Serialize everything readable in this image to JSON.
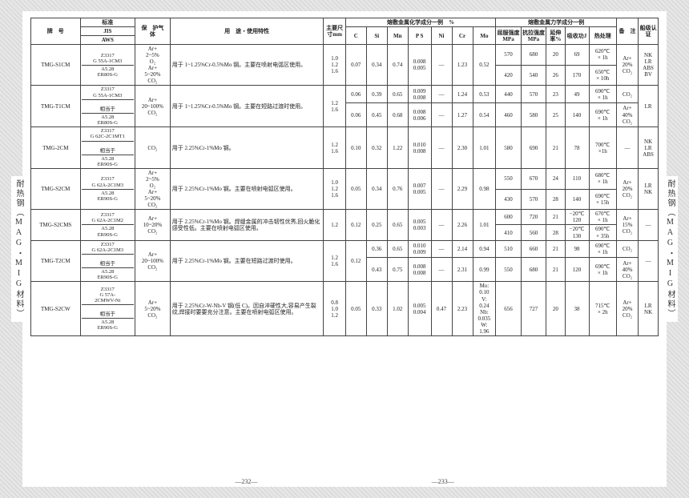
{
  "side_label": "耐热钢（MAG・MIG材料）",
  "page_left": "—232—",
  "page_right": "—233—",
  "head": {
    "brand": "牌　号",
    "std": "标准",
    "std_jis": "JIS",
    "std_aws": "AWS",
    "gas": "保　护气　体",
    "use": "用　途・使用特性",
    "size": "主要尺寸mm",
    "chem": "熔敷金属化学成分一例　%",
    "mech": "熔敷金属力学成分一例",
    "note": "备　注",
    "cert": "船级认证",
    "C": "C",
    "Si": "Si",
    "Mn": "Mn",
    "PS": "P\nS",
    "Ni": "Ni",
    "Cr": "Cr",
    "Mo": "Mo",
    "ys": "屈服强度MPa",
    "ts": "抗拉强度MPa",
    "el": "延伸率%",
    "cvn": "吸收功J",
    "ht": "热处理"
  },
  "rows": [
    {
      "brand": "TMG-S1CM",
      "std1": {
        "jis": "Z3317\nG 55A-1CM3",
        "aws": "A5.28\nER80S-G"
      },
      "std2": null,
      "gas": "Ar+\n2~5%\nO₂\nAr+\n5~20%\nCO₂",
      "use": "用于 1~1.25%Cr-0.5%Mo 钢。主要在喷射电弧区使用。",
      "size": "1.0\n1.2\n1.6",
      "chem": {
        "C": "0.07",
        "Si": "0.34",
        "Mn": "0.74",
        "PS": "0.008\n0.005",
        "Ni": "—",
        "Cr": "1.23",
        "Mo": "0.52"
      },
      "mech": [
        {
          "ys": "570",
          "ts": "680",
          "el": "20",
          "cvn": "69",
          "ht": "620℃\n× 1h"
        },
        {
          "ys": "420",
          "ts": "540",
          "el": "26",
          "cvn": "170",
          "ht": "650℃\n× 10h"
        }
      ],
      "note": "Ar+\n20%\nCO₂",
      "cert": "NK\nLR\nABS\nBV"
    },
    {
      "brand": "TMG-T1CM",
      "std1": {
        "jis": "Z3317\nG 55A-1CM3",
        "aws": ""
      },
      "std2": {
        "jis": "相当于",
        "aws": "A5.28\nER80S-G"
      },
      "gas": "Ar+\n20~100%\nCO₂",
      "use": "用于 1~1.25%Cr-0.5%Mo 钢。主要在短路过渡时使用。",
      "size": "1.2\n1.6",
      "chem_rows": [
        {
          "C": "0.06",
          "Si": "0.39",
          "Mn": "0.65",
          "PS": "0.009\n0.008",
          "Ni": "—",
          "Cr": "1.24",
          "Mo": "0.53"
        },
        {
          "C": "0.06",
          "Si": "0.45",
          "Mn": "0.68",
          "PS": "0.008\n0.006",
          "Ni": "—",
          "Cr": "1.27",
          "Mo": "0.54"
        }
      ],
      "mech": [
        {
          "ys": "440",
          "ts": "570",
          "el": "23",
          "cvn": "49",
          "ht": "690℃\n× 1h",
          "note": "CO₂"
        },
        {
          "ys": "460",
          "ts": "580",
          "el": "25",
          "cvn": "140",
          "ht": "690℃\n× 1h",
          "note": "Ar+\n40%\nCO₂"
        }
      ],
      "cert": "LR"
    },
    {
      "brand": "TMG-2CM",
      "std1": {
        "jis": "Z3317\nG 62C-2C1MT1",
        "aws": ""
      },
      "std2": {
        "jis": "相当于",
        "aws": "A5.28\nER90S-G"
      },
      "gas": "CO₂",
      "use": "用于 2.25%Cr-1%Mo 钢。",
      "size": "1.2\n1.6",
      "chem": {
        "C": "0.10",
        "Si": "0.32",
        "Mn": "1.22",
        "PS": "0.010\n0.008",
        "Ni": "—",
        "Cr": "2.30",
        "Mo": "1.01"
      },
      "mech": [
        {
          "ys": "580",
          "ts": "690",
          "el": "21",
          "cvn": "78",
          "ht": "700℃\n×1h"
        }
      ],
      "note": "—",
      "cert": "NK\nLR\nABS"
    },
    {
      "brand": "TMG-S2CM",
      "std1": {
        "jis": "Z3317\nG 62A-2C1M3",
        "aws": "A5.28\nER90S-G"
      },
      "std2": null,
      "gas": "Ar+\n2~5%\nO₂\nAr+\n5~20%\nCO₂",
      "use": "用于 2.25%Cr-1%Mo 钢。主要在喷射电弧区使用。",
      "size": "1.0\n1.2\n1.6",
      "chem": {
        "C": "0.05",
        "Si": "0.34",
        "Mn": "0.76",
        "PS": "0.007\n0.005",
        "Ni": "—",
        "Cr": "2.29",
        "Mo": "0.98"
      },
      "mech": [
        {
          "ys": "550",
          "ts": "670",
          "el": "24",
          "cvn": "110",
          "ht": "680℃\n× 1h"
        },
        {
          "ys": "430",
          "ts": "570",
          "el": "28",
          "cvn": "140",
          "ht": "690℃\n× 15h"
        }
      ],
      "note": "Ar+\n20%\nCO₂",
      "cert": "LR\nNK"
    },
    {
      "brand": "TMG-S2CMS",
      "std1": {
        "jis": "Z3317\nG 62A-2C1M2",
        "aws": "A5.28\nER90S-G"
      },
      "std2": null,
      "gas": "Ar+\n10~20%\nCO₂",
      "use": "用于 2.25%Cr-1%Mo 钢。焊缝金属的冲击韧性优秀,回火脆化感受性低。主要在喷射电弧区使用。",
      "size": "1.2",
      "chem": {
        "C": "0.12",
        "Si": "0.25",
        "Mn": "0.65",
        "PS": "0.005\n0.003",
        "Ni": "—",
        "Cr": "2.26",
        "Mo": "1.01"
      },
      "mech": [
        {
          "ys": "600",
          "ts": "720",
          "el": "21",
          "cvn": "−20℃\n120",
          "ht": "670℃\n× 1h"
        },
        {
          "ys": "410",
          "ts": "560",
          "el": "28",
          "cvn": "−20℃\n130",
          "ht": "690℃\n× 35h"
        }
      ],
      "note": "Ar+\n15%\nCO₂",
      "cert": "—"
    },
    {
      "brand": "TMG-T2CM",
      "std1": {
        "jis": "Z3317\nG 62A-2C1M3",
        "aws": ""
      },
      "std2": {
        "jis": "相当于",
        "aws": "A5.28\nER90S-G"
      },
      "gas": "Ar+\n20~100%\nCO₂",
      "use": "用于 2.25%Cr-1%Mo 钢。主要在短路过渡时使用。",
      "size": "1.2\n1.6",
      "chem_c": "0.12",
      "chem_rows": [
        {
          "Si": "0.36",
          "Mn": "0.65",
          "PS": "0.010\n0.009",
          "Ni": "—",
          "Cr": "2.14",
          "Mo": "0.94"
        },
        {
          "Si": "0.43",
          "Mn": "0.75",
          "PS": "0.008\n0.008",
          "Ni": "—",
          "Cr": "2.31",
          "Mo": "0.99"
        }
      ],
      "mech": [
        {
          "ys": "510",
          "ts": "660",
          "el": "21",
          "cvn": "98",
          "ht": "690℃\n× 1h",
          "note": "CO₂"
        },
        {
          "ys": "550",
          "ts": "680",
          "el": "21",
          "cvn": "120",
          "ht": "690℃\n× 1h",
          "note": "Ar+\n40%\nCO₂"
        }
      ],
      "cert": "—"
    },
    {
      "brand": "TMG-S2CW",
      "std1": {
        "jis": "Z3317\nG 57A-\n2CMWV-Ni",
        "aws": ""
      },
      "std2": {
        "jis": "相当于",
        "aws": "A5.28\nER90S-G"
      },
      "gas": "Ar+\n5~20%\nCO₂",
      "use": "用于 2.25%Cr-W-Nb-V 钢(低 C)。因自淬硬性大,容易产生裂纹,焊接时要要充分注意。主要在喷射电弧区使用。",
      "size": "0.8\n1.0\n1.2",
      "chem": {
        "C": "0.05",
        "Si": "0.33",
        "Mn": "1.02",
        "PS": "0.005\n0.004",
        "Ni": "0.47",
        "Cr": "2.23",
        "Mo": "Mo:\n0.10\nV:\n0.24\nNb:\n0.035\nW:\n1.96"
      },
      "mech": [
        {
          "ys": "656",
          "ts": "727",
          "el": "20",
          "cvn": "38",
          "ht": "715℃\n× 2h"
        }
      ],
      "note": "Ar+\n20%\nCO₂",
      "cert": "LR\nNK"
    }
  ]
}
